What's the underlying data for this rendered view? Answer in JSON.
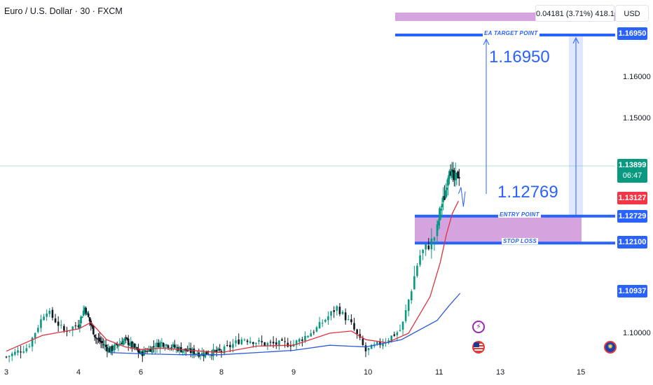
{
  "header": {
    "symbol_title": "Euro / U.S. Dollar · 30 · FXCM",
    "currency": "USD"
  },
  "measure": {
    "readout": "0.04181 (3.71%) 418.1"
  },
  "annotations": {
    "target_label": "EA TARGET POINT",
    "entry_label": "ENTRY POINT",
    "stop_label": "STOP LOSS",
    "big_target": "1.16950",
    "big_entry": "1.12769"
  },
  "price_tags": {
    "target": "1.16950",
    "current_price": "1.13899",
    "countdown": "06:47",
    "red_level": "1.13127",
    "entry": "1.12729",
    "stop": "1.12100",
    "blue_level": "1.10937"
  },
  "colors": {
    "up_candle": "#089981",
    "down_candle": "#131722",
    "ma_fast": "#e0313e",
    "ma_slow": "#2e5bd8",
    "zone": "#ce93d8",
    "line_blue": "#2962ff",
    "current_tag": "#089981",
    "red_tag": "#f23645"
  },
  "icons": [
    "lightning-icon",
    "us-flag-icon",
    "eu-flag-icon"
  ],
  "chart_data": {
    "type": "candlestick",
    "title": "Euro / U.S. Dollar · 30 · FXCM",
    "x_ticks": [
      "3",
      "4",
      "6",
      "8",
      "9",
      "10",
      "11",
      "13",
      "15"
    ],
    "y_ticks": [
      "1.16000",
      "1.15000",
      "1.10000"
    ],
    "ylim": [
      1.0935,
      1.178
    ],
    "current_price": 1.13899,
    "levels": {
      "target": 1.1695,
      "entry": 1.12729,
      "stop": 1.121,
      "projected_entry": 1.12769
    },
    "close_path": [
      {
        "day": 3.0,
        "price": 1.0945
      },
      {
        "day": 3.3,
        "price": 1.0968
      },
      {
        "day": 3.55,
        "price": 1.1055
      },
      {
        "day": 3.8,
        "price": 1.1005
      },
      {
        "day": 4.0,
        "price": 1.102
      },
      {
        "day": 4.2,
        "price": 1.106
      },
      {
        "day": 4.55,
        "price": 1.099
      },
      {
        "day": 5.0,
        "price": 1.096
      },
      {
        "day": 5.5,
        "price": 1.0985
      },
      {
        "day": 6.0,
        "price": 1.0952
      },
      {
        "day": 6.5,
        "price": 1.0978
      },
      {
        "day": 7.0,
        "price": 1.0962
      },
      {
        "day": 7.5,
        "price": 1.0952
      },
      {
        "day": 8.0,
        "price": 1.0958
      },
      {
        "day": 8.3,
        "price": 1.0988
      },
      {
        "day": 8.6,
        "price": 1.0975
      },
      {
        "day": 9.0,
        "price": 1.0975
      },
      {
        "day": 9.3,
        "price": 1.1008
      },
      {
        "day": 9.6,
        "price": 1.106
      },
      {
        "day": 9.8,
        "price": 1.102
      },
      {
        "day": 10.0,
        "price": 1.0958
      },
      {
        "day": 10.3,
        "price": 1.0985
      },
      {
        "day": 10.5,
        "price": 1.101
      },
      {
        "day": 10.75,
        "price": 1.118
      },
      {
        "day": 10.95,
        "price": 1.122
      },
      {
        "day": 11.1,
        "price": 1.129
      },
      {
        "day": 11.25,
        "price": 1.132
      },
      {
        "day": 11.4,
        "price": 1.139
      },
      {
        "day": 11.55,
        "price": 1.1355
      },
      {
        "day": 11.7,
        "price": 1.137
      }
    ],
    "series": [
      {
        "name": "",
        "type": "ma_fast",
        "points": [
          [
            3.0,
            1.0958
          ],
          [
            3.5,
            1.0995
          ],
          [
            4.0,
            1.101
          ],
          [
            4.4,
            1.1025
          ],
          [
            4.9,
            1.0985
          ],
          [
            5.5,
            1.0968
          ],
          [
            6.0,
            1.0962
          ],
          [
            6.5,
            1.0965
          ],
          [
            7.0,
            1.0962
          ],
          [
            7.5,
            1.0958
          ],
          [
            8.0,
            1.0955
          ],
          [
            8.5,
            1.097
          ],
          [
            9.0,
            1.0972
          ],
          [
            9.5,
            1.1
          ],
          [
            9.8,
            1.1005
          ],
          [
            10.0,
            1.0985
          ],
          [
            10.3,
            1.0978
          ],
          [
            10.6,
            1.1
          ],
          [
            10.9,
            1.1085
          ],
          [
            11.1,
            1.1165
          ],
          [
            11.3,
            1.123
          ],
          [
            11.5,
            1.128
          ],
          [
            11.7,
            1.1308
          ]
        ]
      },
      {
        "name": "",
        "type": "ma_slow",
        "points": [
          [
            5.0,
            1.0955
          ],
          [
            6.0,
            1.0952
          ],
          [
            7.0,
            1.095
          ],
          [
            8.0,
            1.095
          ],
          [
            9.0,
            1.096
          ],
          [
            9.5,
            1.0972
          ],
          [
            10.0,
            1.0968
          ],
          [
            10.5,
            1.0985
          ],
          [
            11.0,
            1.103
          ],
          [
            11.4,
            1.1065
          ],
          [
            11.75,
            1.1093
          ]
        ]
      }
    ]
  }
}
